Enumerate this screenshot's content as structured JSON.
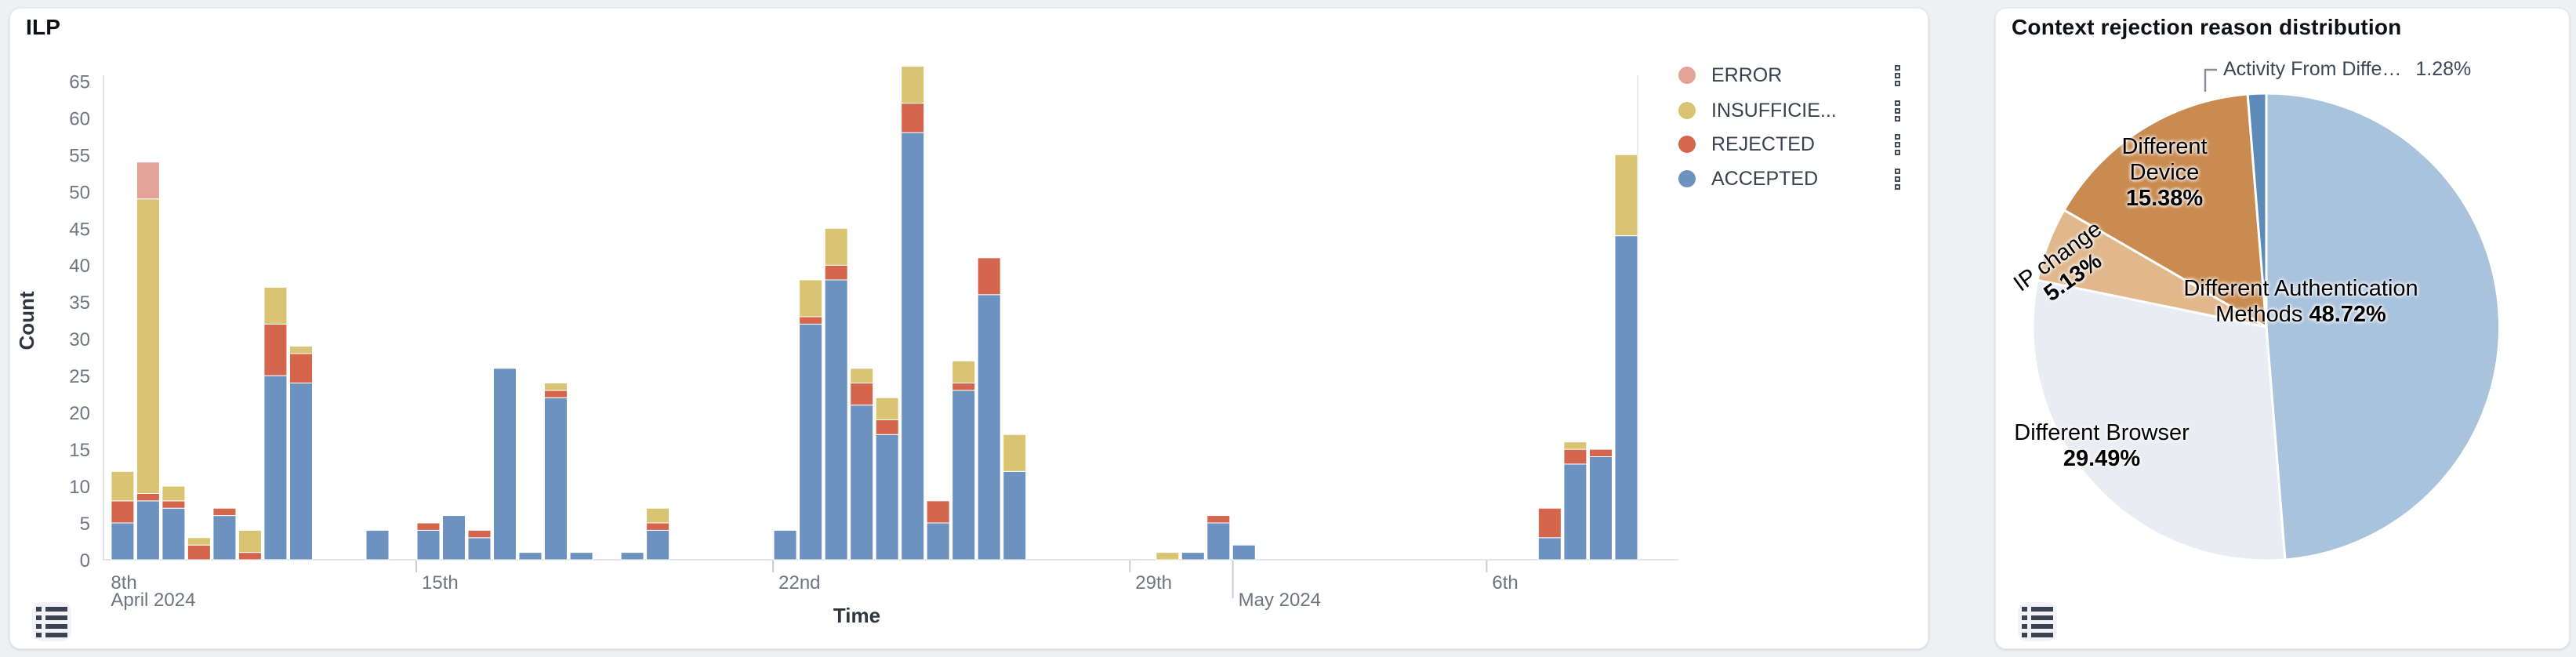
{
  "left_panel": {
    "title": "ILP",
    "y_axis": {
      "label": "Count",
      "min": 0,
      "max": 65,
      "step": 5
    },
    "x_axis": {
      "label": "Time",
      "ticks": [
        {
          "label": "8th",
          "t": -6.1,
          "show_tick": false,
          "sub": "April 2024"
        },
        {
          "label": "15th",
          "t": 0,
          "show_tick": true
        },
        {
          "label": "22nd",
          "t": 7,
          "show_tick": true
        },
        {
          "label": "29th",
          "t": 14,
          "show_tick": true
        },
        {
          "label": "May 2024",
          "t": 16.02,
          "show_tick": true,
          "second_row": true,
          "long_tick": true
        },
        {
          "label": "6th",
          "t": 21,
          "show_tick": true
        }
      ]
    },
    "legend": [
      {
        "label": "ERROR",
        "color": "#e5a298"
      },
      {
        "label": "INSUFFICIE...",
        "color": "#d8c472"
      },
      {
        "label": "REJECTED",
        "color": "#d4664e"
      },
      {
        "label": "ACCEPTED",
        "color": "#6e92c0"
      }
    ]
  },
  "right_panel": {
    "title": "Context rejection reason distribution",
    "callout": {
      "label": "Activity From Diffe…",
      "pct_display": "1.28%"
    }
  },
  "icons": {
    "panel_action": "list-view-icon",
    "legend_item_menu": "kebab-vertical-icon"
  },
  "chart_data": [
    {
      "type": "bar",
      "stacked": true,
      "x_type": "time",
      "bucket_hours": 12,
      "title": "ILP",
      "xlabel": "Time",
      "ylabel": "Count",
      "ylim": [
        0,
        65
      ],
      "grid": false,
      "legend_position": "right",
      "series_order": [
        "ACCEPTED",
        "REJECTED",
        "INSUFFICIENT",
        "ERROR"
      ],
      "series_colors": {
        "ACCEPTED": "#6e92c0",
        "REJECTED": "#d4664e",
        "INSUFFICIENT": "#d8c472",
        "ERROR": "#e5a298"
      },
      "points": [
        {
          "time": "Apr 9 AM",
          "t": -6,
          "ACCEPTED": 5,
          "REJECTED": 3,
          "INSUFFICIENT": 4,
          "ERROR": 0
        },
        {
          "time": "Apr 9 PM",
          "t": -5.5,
          "ACCEPTED": 8,
          "REJECTED": 1,
          "INSUFFICIENT": 40,
          "ERROR": 5
        },
        {
          "time": "Apr 10 AM",
          "t": -5,
          "ACCEPTED": 7,
          "REJECTED": 1,
          "INSUFFICIENT": 2,
          "ERROR": 0
        },
        {
          "time": "Apr 10 PM",
          "t": -4.5,
          "ACCEPTED": 0,
          "REJECTED": 2,
          "INSUFFICIENT": 1,
          "ERROR": 0
        },
        {
          "time": "Apr 11 AM",
          "t": -4,
          "ACCEPTED": 6,
          "REJECTED": 1,
          "INSUFFICIENT": 0,
          "ERROR": 0
        },
        {
          "time": "Apr 11 PM",
          "t": -3.5,
          "ACCEPTED": 0,
          "REJECTED": 1,
          "INSUFFICIENT": 3,
          "ERROR": 0
        },
        {
          "time": "Apr 12 AM",
          "t": -3,
          "ACCEPTED": 25,
          "REJECTED": 7,
          "INSUFFICIENT": 5,
          "ERROR": 0
        },
        {
          "time": "Apr 12 PM",
          "t": -2.5,
          "ACCEPTED": 24,
          "REJECTED": 4,
          "INSUFFICIENT": 1,
          "ERROR": 0
        },
        {
          "time": "Apr 14 AM",
          "t": -1,
          "ACCEPTED": 4,
          "REJECTED": 0,
          "INSUFFICIENT": 0,
          "ERROR": 0
        },
        {
          "time": "Apr 15 AM",
          "t": 0,
          "ACCEPTED": 4,
          "REJECTED": 1,
          "INSUFFICIENT": 0,
          "ERROR": 0
        },
        {
          "time": "Apr 15 PM",
          "t": 0.5,
          "ACCEPTED": 6,
          "REJECTED": 0,
          "INSUFFICIENT": 0,
          "ERROR": 0
        },
        {
          "time": "Apr 16 AM",
          "t": 1,
          "ACCEPTED": 3,
          "REJECTED": 1,
          "INSUFFICIENT": 0,
          "ERROR": 0
        },
        {
          "time": "Apr 16 PM",
          "t": 1.5,
          "ACCEPTED": 26,
          "REJECTED": 0,
          "INSUFFICIENT": 0,
          "ERROR": 0
        },
        {
          "time": "Apr 17 AM",
          "t": 2,
          "ACCEPTED": 1,
          "REJECTED": 0,
          "INSUFFICIENT": 0,
          "ERROR": 0
        },
        {
          "time": "Apr 17 PM",
          "t": 2.5,
          "ACCEPTED": 22,
          "REJECTED": 1,
          "INSUFFICIENT": 1,
          "ERROR": 0
        },
        {
          "time": "Apr 18 AM",
          "t": 3,
          "ACCEPTED": 1,
          "REJECTED": 0,
          "INSUFFICIENT": 0,
          "ERROR": 0
        },
        {
          "time": "Apr 19 AM",
          "t": 4,
          "ACCEPTED": 1,
          "REJECTED": 0,
          "INSUFFICIENT": 0,
          "ERROR": 0
        },
        {
          "time": "Apr 19 PM",
          "t": 4.5,
          "ACCEPTED": 4,
          "REJECTED": 1,
          "INSUFFICIENT": 2,
          "ERROR": 0
        },
        {
          "time": "Apr 22 AM",
          "t": 7,
          "ACCEPTED": 4,
          "REJECTED": 0,
          "INSUFFICIENT": 0,
          "ERROR": 0
        },
        {
          "time": "Apr 22 PM",
          "t": 7.5,
          "ACCEPTED": 32,
          "REJECTED": 1,
          "INSUFFICIENT": 5,
          "ERROR": 0
        },
        {
          "time": "Apr 23 AM",
          "t": 8,
          "ACCEPTED": 38,
          "REJECTED": 2,
          "INSUFFICIENT": 5,
          "ERROR": 0
        },
        {
          "time": "Apr 23 PM",
          "t": 8.5,
          "ACCEPTED": 21,
          "REJECTED": 3,
          "INSUFFICIENT": 2,
          "ERROR": 0
        },
        {
          "time": "Apr 24 AM",
          "t": 9,
          "ACCEPTED": 17,
          "REJECTED": 2,
          "INSUFFICIENT": 3,
          "ERROR": 0
        },
        {
          "time": "Apr 24 PM",
          "t": 9.5,
          "ACCEPTED": 58,
          "REJECTED": 4,
          "INSUFFICIENT": 5,
          "ERROR": 0
        },
        {
          "time": "Apr 25 AM",
          "t": 10,
          "ACCEPTED": 5,
          "REJECTED": 3,
          "INSUFFICIENT": 0,
          "ERROR": 0
        },
        {
          "time": "Apr 25 PM",
          "t": 10.5,
          "ACCEPTED": 23,
          "REJECTED": 1,
          "INSUFFICIENT": 3,
          "ERROR": 0
        },
        {
          "time": "Apr 26 AM",
          "t": 11,
          "ACCEPTED": 36,
          "REJECTED": 5,
          "INSUFFICIENT": 0,
          "ERROR": 0
        },
        {
          "time": "Apr 26 PM",
          "t": 11.5,
          "ACCEPTED": 12,
          "REJECTED": 0,
          "INSUFFICIENT": 5,
          "ERROR": 0
        },
        {
          "time": "Apr 29 PM",
          "t": 14.5,
          "ACCEPTED": 0,
          "REJECTED": 0,
          "INSUFFICIENT": 1,
          "ERROR": 0
        },
        {
          "time": "Apr 30 AM",
          "t": 15,
          "ACCEPTED": 1,
          "REJECTED": 0,
          "INSUFFICIENT": 0,
          "ERROR": 0
        },
        {
          "time": "Apr 30 PM",
          "t": 15.5,
          "ACCEPTED": 5,
          "REJECTED": 1,
          "INSUFFICIENT": 0,
          "ERROR": 0
        },
        {
          "time": "May 1 AM",
          "t": 16,
          "ACCEPTED": 2,
          "REJECTED": 0,
          "INSUFFICIENT": 0,
          "ERROR": 0
        },
        {
          "time": "May 7 AM",
          "t": 22,
          "ACCEPTED": 3,
          "REJECTED": 4,
          "INSUFFICIENT": 0,
          "ERROR": 0
        },
        {
          "time": "May 7 PM",
          "t": 22.5,
          "ACCEPTED": 13,
          "REJECTED": 2,
          "INSUFFICIENT": 1,
          "ERROR": 0
        },
        {
          "time": "May 8 AM",
          "t": 23,
          "ACCEPTED": 14,
          "REJECTED": 1,
          "INSUFFICIENT": 0,
          "ERROR": 0
        },
        {
          "time": "May 8 PM",
          "t": 23.5,
          "ACCEPTED": 44,
          "REJECTED": 0,
          "INSUFFICIENT": 11,
          "ERROR": 0
        }
      ]
    },
    {
      "type": "pie",
      "title": "Context rejection reason distribution",
      "start_angle": "12 o'clock",
      "clockwise": true,
      "slices": [
        {
          "label": "Different Authentication Methods",
          "pct": 48.72,
          "pct_display": "48.72%",
          "color": "#a9c3dd"
        },
        {
          "label": "Different Browser",
          "pct": 29.49,
          "pct_display": "29.49%",
          "color": "#e9edf3"
        },
        {
          "label": "IP change",
          "pct": 5.13,
          "pct_display": "5.13%",
          "color": "#e0b88c"
        },
        {
          "label": "Different Device",
          "pct": 15.38,
          "pct_display": "15.38%",
          "color": "#c98b4f"
        },
        {
          "label": "Activity From Diffe…",
          "pct": 1.28,
          "pct_display": "1.28%",
          "color": "#5e8ab8"
        }
      ]
    }
  ]
}
